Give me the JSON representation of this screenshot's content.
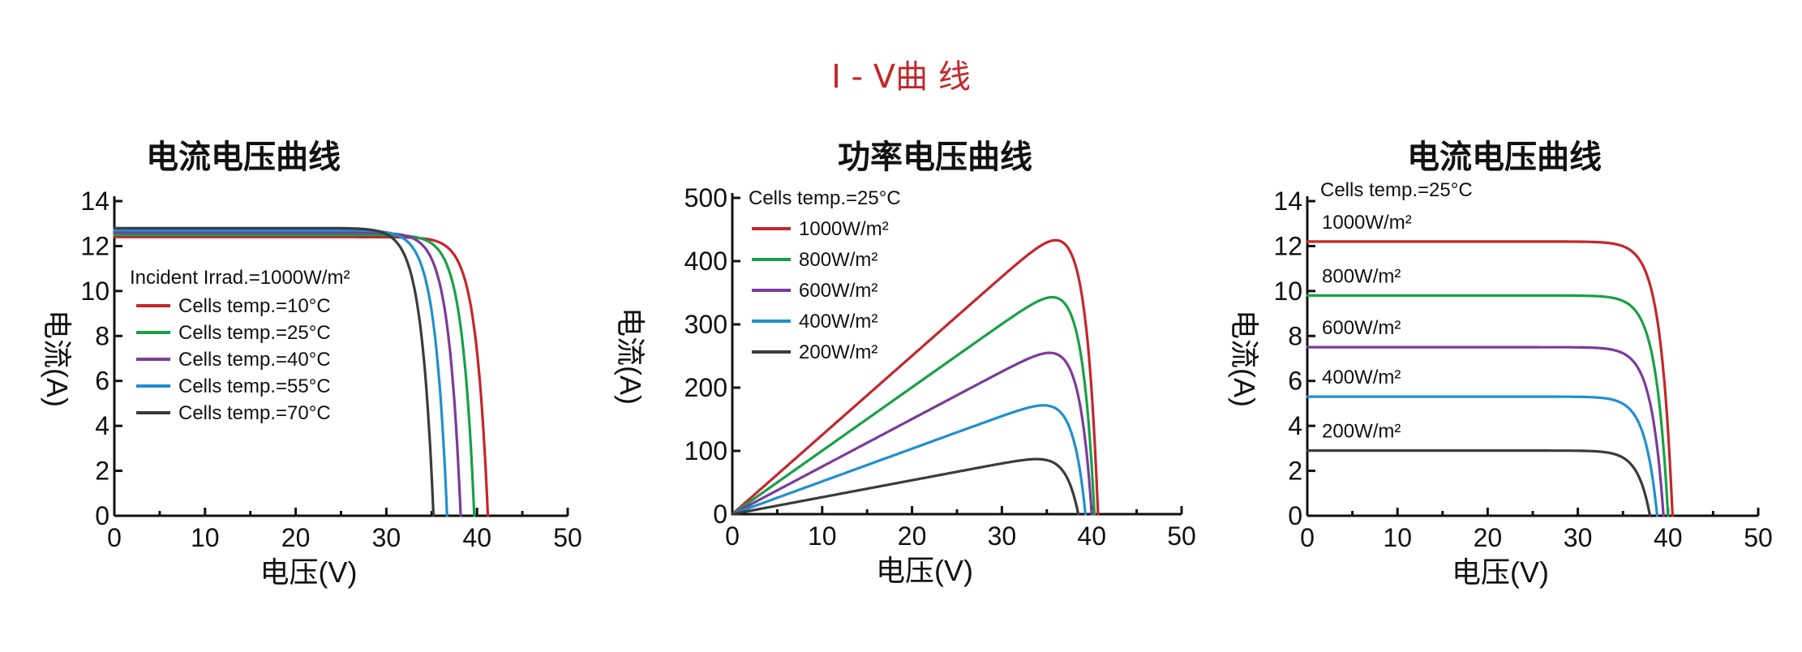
{
  "page_title": "I - V曲 线",
  "colors": {
    "red": "#c4262b",
    "green": "#18a046",
    "purple": "#7b3a9c",
    "blue": "#1f8fd0",
    "dark": "#3b3b3b"
  },
  "chart_data": [
    {
      "type": "line",
      "title": "电流电压曲线",
      "xlabel": "电压(V)",
      "ylabel": "电流(A)",
      "xlim": [
        0,
        50
      ],
      "ylim": [
        0,
        14
      ],
      "x_ticks": [
        "0",
        "10",
        "20",
        "30",
        "40",
        "50"
      ],
      "y_ticks": [
        "0",
        "2",
        "4",
        "6",
        "8",
        "10",
        "12",
        "14"
      ],
      "legend_title": "Incident Irrad.=1000W/m²",
      "legend_position": "middle-left",
      "series": [
        {
          "name": "Cells temp.=10°C",
          "color": "red",
          "isc": 12.4,
          "voc": 41.2
        },
        {
          "name": "Cells temp.=25°C",
          "color": "green",
          "isc": 12.5,
          "voc": 39.7
        },
        {
          "name": "Cells temp.=40°C",
          "color": "purple",
          "isc": 12.6,
          "voc": 38.2
        },
        {
          "name": "Cells temp.=55°C",
          "color": "blue",
          "isc": 12.7,
          "voc": 36.7
        },
        {
          "name": "Cells temp.=70°C",
          "color": "dark",
          "isc": 12.8,
          "voc": 35.2
        }
      ]
    },
    {
      "type": "line",
      "title": "功率电压曲线",
      "xlabel": "电压(V)",
      "ylabel": "电流(A)",
      "xlim": [
        0,
        50
      ],
      "ylim": [
        0,
        500
      ],
      "x_ticks": [
        "0",
        "10",
        "20",
        "30",
        "40",
        "50"
      ],
      "y_ticks": [
        "0",
        "100",
        "200",
        "300",
        "400",
        "500"
      ],
      "note": "Cells temp.=25°C",
      "legend_position": "top-left",
      "series": [
        {
          "name": "1000W/m²",
          "color": "red",
          "isc": 12.9,
          "voc": 40.7,
          "peak": [
            33.5,
            433
          ]
        },
        {
          "name": "800W/m²",
          "color": "green",
          "isc": 10.3,
          "voc": 40.3,
          "peak": [
            33,
            343
          ]
        },
        {
          "name": "600W/m²",
          "color": "purple",
          "isc": 7.7,
          "voc": 40.0,
          "peak": [
            33,
            255
          ]
        },
        {
          "name": "400W/m²",
          "color": "blue",
          "isc": 5.2,
          "voc": 39.3,
          "peak": [
            32.5,
            172
          ]
        },
        {
          "name": "200W/m²",
          "color": "dark",
          "isc": 2.6,
          "voc": 38.5,
          "peak": [
            32.5,
            87
          ]
        }
      ]
    },
    {
      "type": "line",
      "title": "电流电压曲线",
      "xlabel": "电压(V)",
      "ylabel": "电流(A)",
      "xlim": [
        0,
        50
      ],
      "ylim": [
        0,
        14
      ],
      "x_ticks": [
        "0",
        "10",
        "20",
        "30",
        "40",
        "50"
      ],
      "y_ticks": [
        "0",
        "2",
        "4",
        "6",
        "8",
        "10",
        "12",
        "14"
      ],
      "note": "Cells temp.=25°C",
      "series": [
        {
          "name": "1000W/m²",
          "color": "red",
          "isc": 12.2,
          "voc": 40.5
        },
        {
          "name": "800W/m²",
          "color": "green",
          "isc": 9.8,
          "voc": 40.0
        },
        {
          "name": "600W/m²",
          "color": "purple",
          "isc": 7.5,
          "voc": 39.5
        },
        {
          "name": "400W/m²",
          "color": "blue",
          "isc": 5.3,
          "voc": 38.8
        },
        {
          "name": "200W/m²",
          "color": "dark",
          "isc": 2.9,
          "voc": 38.0
        }
      ]
    }
  ]
}
